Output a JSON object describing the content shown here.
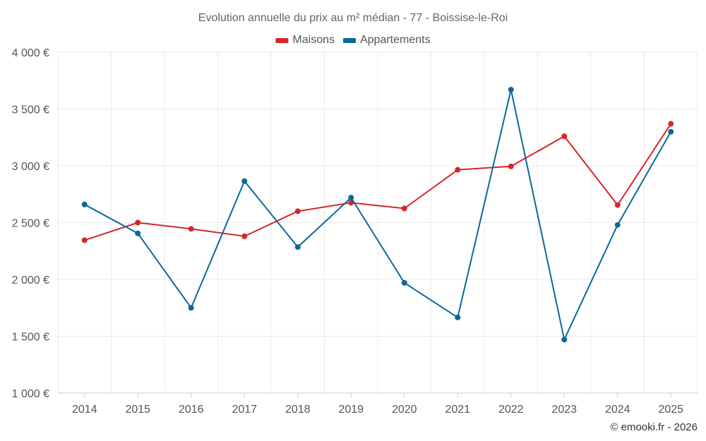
{
  "chart_data": {
    "type": "line",
    "title": "Evolution annuelle du prix au m² médian - 77 - Boissise-le-Roi",
    "xlabel": "",
    "ylabel": "",
    "ylim": [
      1000,
      4000
    ],
    "y_ticks": [
      1000,
      1500,
      2000,
      2500,
      3000,
      3500,
      4000
    ],
    "y_tick_labels": [
      "1 000 €",
      "1 500 €",
      "2 000 €",
      "2 500 €",
      "3 000 €",
      "3 500 €",
      "4 000 €"
    ],
    "categories": [
      "2014",
      "2015",
      "2016",
      "2017",
      "2018",
      "2019",
      "2020",
      "2021",
      "2022",
      "2023",
      "2024",
      "2025"
    ],
    "grid": true,
    "legend_position": "top-center",
    "series": [
      {
        "name": "Maisons",
        "color": "#d62728",
        "values": [
          2345,
          2500,
          2445,
          2380,
          2600,
          2675,
          2625,
          2965,
          2995,
          3260,
          2655,
          3370
        ]
      },
      {
        "name": "Appartements",
        "color": "#0a6a9a",
        "values": [
          2660,
          2405,
          1750,
          2865,
          2285,
          2720,
          1970,
          1665,
          3670,
          1470,
          2480,
          3300
        ]
      }
    ]
  },
  "credit": "© emooki.fr - 2026"
}
